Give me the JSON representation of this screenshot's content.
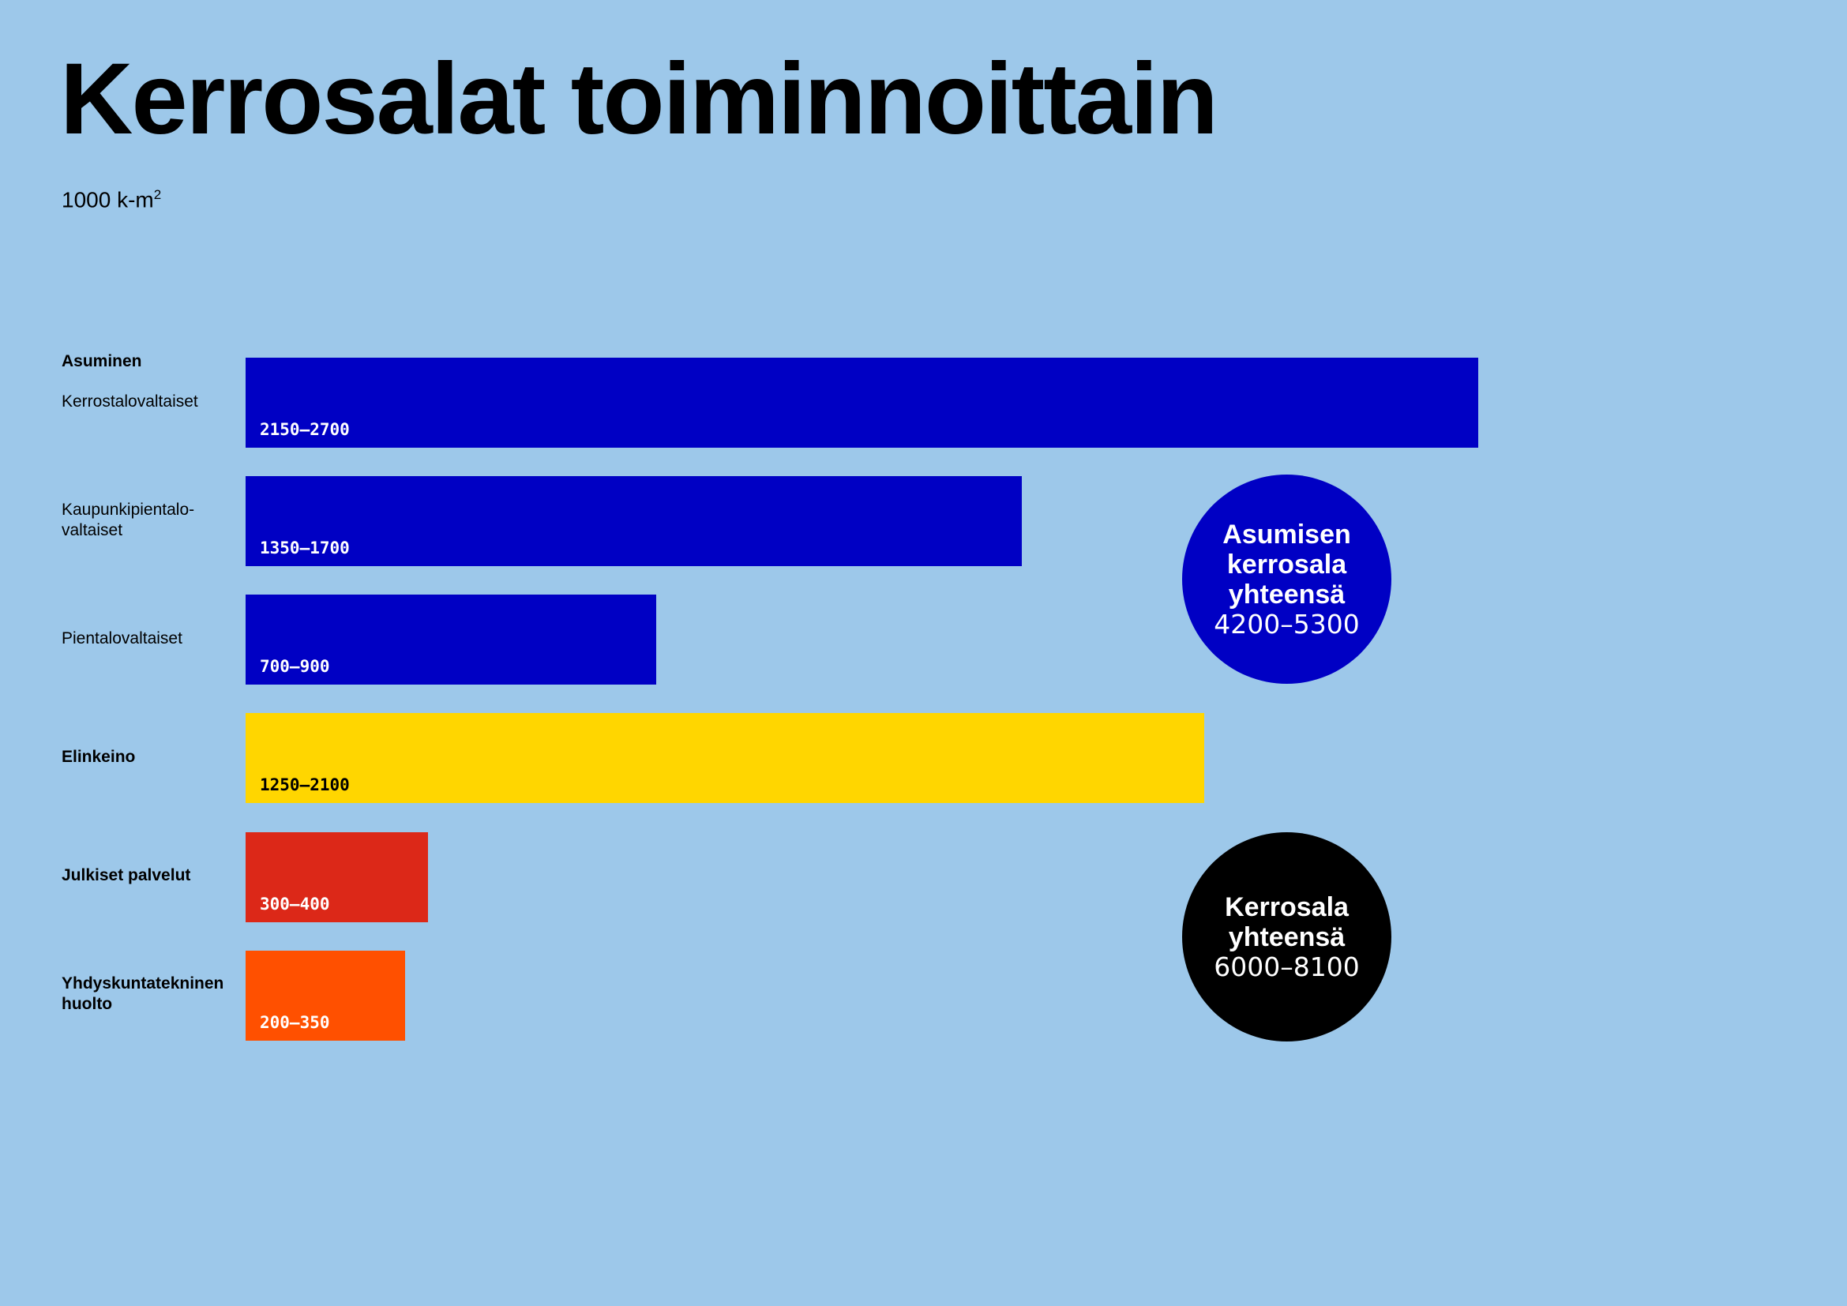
{
  "title": "Kerrosalat toiminnoittain",
  "unit": {
    "base": "1000 k-m",
    "sup": "2"
  },
  "group_label": "Asuminen",
  "chart_data": {
    "type": "bar",
    "orientation": "horizontal",
    "categories": [
      "Kerrostalovaltaiset",
      "Kaupunkipientalo-valtaiset",
      "Pientalovaltaiset",
      "Elinkeino",
      "Julkiset palvelut",
      "Yhdyskuntatekninen huolto"
    ],
    "ranges": [
      {
        "low": 2150,
        "high": 2700,
        "label": "2150–2700",
        "color": "#0000c4",
        "text_color": "#ffffff",
        "bold_label": false
      },
      {
        "low": 1350,
        "high": 1700,
        "label": "1350–1700",
        "color": "#0000c4",
        "text_color": "#ffffff",
        "bold_label": false
      },
      {
        "low": 700,
        "high": 900,
        "label": "700–900",
        "color": "#0000c4",
        "text_color": "#ffffff",
        "bold_label": false
      },
      {
        "low": 1250,
        "high": 2100,
        "label": "1250–2100",
        "color": "#ffd600",
        "text_color": "#000000",
        "bold_label": true
      },
      {
        "low": 300,
        "high": 400,
        "label": "300–400",
        "color": "#dc2818",
        "text_color": "#ffffff",
        "bold_label": true
      },
      {
        "low": 200,
        "high": 350,
        "label": "200–350",
        "color": "#ff5000",
        "text_color": "#ffffff",
        "bold_label": true
      }
    ],
    "bar_scale_max": 2700,
    "grid": false,
    "legend": "none"
  },
  "callouts": {
    "housing_total": {
      "title": "Asumisen kerrosala yhteensä",
      "value": "4200–5300",
      "color": "#0000c4"
    },
    "grand_total": {
      "title": "Kerrosala yhteensä",
      "value": "6000–8100",
      "color": "#000000"
    }
  }
}
